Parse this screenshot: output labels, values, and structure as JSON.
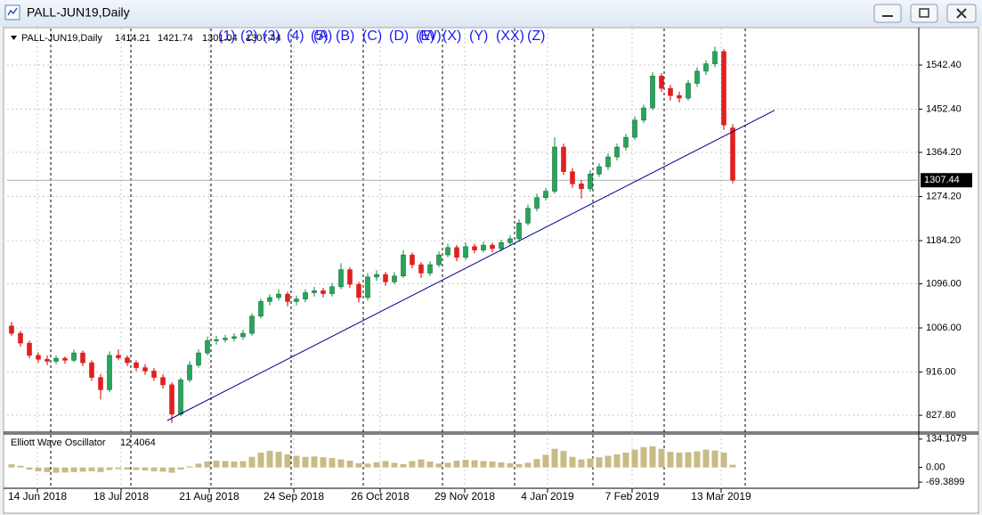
{
  "window": {
    "title": "PALL-JUN19,Daily"
  },
  "wave_labels": [
    "(1)",
    "(2)",
    "(3)",
    "(4)",
    "(5)",
    "(A)",
    "(B)",
    "(C)",
    "(D)",
    "(E)",
    "(W)",
    "(X)",
    "(Y)",
    "(XX)",
    "(Z)"
  ],
  "chart_data": [
    {
      "type": "candlestick",
      "up_color": "#26a65b",
      "down_color": "#e0201e",
      "xlim": [
        -0.5,
        101.9
      ],
      "xticks": [
        {
          "value": 2.9,
          "label": "14 Jun 2018"
        },
        {
          "value": 12.3,
          "label": "18 Jul 2018"
        },
        {
          "value": 22.2,
          "label": "21 Aug 2018"
        },
        {
          "value": 31.7,
          "label": "24 Sep 2018"
        },
        {
          "value": 41.4,
          "label": "26 Oct 2018"
        },
        {
          "value": 50.9,
          "label": "29 Nov 2018"
        },
        {
          "value": 60.2,
          "label": "4 Jan 2019"
        },
        {
          "value": 69.7,
          "label": "7 Feb 2019"
        },
        {
          "value": 79.7,
          "label": "13 Mar 2019"
        }
      ],
      "ylim": [
        797,
        1617
      ],
      "yticks": [
        {
          "value": 1542.4,
          "label": "1542.40"
        },
        {
          "value": 1452.4,
          "label": "1452.40"
        },
        {
          "value": 1364.2,
          "label": "1364.20"
        },
        {
          "value": 1274.2,
          "label": "1274.20"
        },
        {
          "value": 1184.2,
          "label": "1184.20"
        },
        {
          "value": 1096,
          "label": "1096.00"
        },
        {
          "value": 1006,
          "label": "1006.00"
        },
        {
          "value": 916,
          "label": "916.00"
        },
        {
          "value": 827.8,
          "label": "827.80"
        }
      ],
      "grid": true,
      "ohlc": [
        [
          1010,
          1018,
          990,
          995
        ],
        [
          995,
          1000,
          968,
          975
        ],
        [
          975,
          980,
          944,
          950
        ],
        [
          950,
          956,
          935,
          942
        ],
        [
          942,
          950,
          930,
          938
        ],
        [
          938,
          950,
          932,
          944
        ],
        [
          944,
          948,
          933,
          940
        ],
        [
          940,
          962,
          936,
          955
        ],
        [
          955,
          960,
          928,
          935
        ],
        [
          935,
          940,
          898,
          905
        ],
        [
          905,
          912,
          860,
          880
        ],
        [
          880,
          958,
          875,
          950
        ],
        [
          950,
          962,
          940,
          945
        ],
        [
          945,
          950,
          928,
          935
        ],
        [
          935,
          940,
          918,
          925
        ],
        [
          925,
          932,
          910,
          918
        ],
        [
          918,
          924,
          898,
          905
        ],
        [
          905,
          912,
          882,
          890
        ],
        [
          890,
          895,
          812,
          830
        ],
        [
          830,
          905,
          826,
          900
        ],
        [
          900,
          938,
          895,
          930
        ],
        [
          930,
          962,
          925,
          955
        ],
        [
          955,
          988,
          950,
          980
        ],
        [
          980,
          990,
          972,
          982
        ],
        [
          982,
          992,
          976,
          985
        ],
        [
          985,
          995,
          978,
          988
        ],
        [
          988,
          1002,
          982,
          995
        ],
        [
          995,
          1036,
          990,
          1030
        ],
        [
          1030,
          1066,
          1025,
          1060
        ],
        [
          1060,
          1075,
          1052,
          1068
        ],
        [
          1068,
          1085,
          1062,
          1075
        ],
        [
          1075,
          1080,
          1050,
          1060
        ],
        [
          1060,
          1072,
          1052,
          1065
        ],
        [
          1065,
          1085,
          1058,
          1078
        ],
        [
          1078,
          1090,
          1070,
          1082
        ],
        [
          1082,
          1088,
          1068,
          1076
        ],
        [
          1076,
          1098,
          1070,
          1090
        ],
        [
          1090,
          1138,
          1085,
          1125
        ],
        [
          1125,
          1130,
          1088,
          1095
        ],
        [
          1095,
          1100,
          1058,
          1068
        ],
        [
          1068,
          1118,
          1062,
          1110
        ],
        [
          1110,
          1124,
          1102,
          1115
        ],
        [
          1115,
          1120,
          1092,
          1100
        ],
        [
          1100,
          1120,
          1095,
          1112
        ],
        [
          1112,
          1165,
          1108,
          1155
        ],
        [
          1155,
          1160,
          1128,
          1135
        ],
        [
          1135,
          1140,
          1108,
          1118
        ],
        [
          1118,
          1142,
          1112,
          1135
        ],
        [
          1135,
          1162,
          1130,
          1155
        ],
        [
          1155,
          1178,
          1150,
          1170
        ],
        [
          1170,
          1175,
          1142,
          1150
        ],
        [
          1150,
          1180,
          1145,
          1172
        ],
        [
          1172,
          1178,
          1158,
          1165
        ],
        [
          1165,
          1182,
          1160,
          1175
        ],
        [
          1175,
          1180,
          1160,
          1168
        ],
        [
          1168,
          1186,
          1162,
          1180
        ],
        [
          1180,
          1195,
          1175,
          1188
        ],
        [
          1188,
          1228,
          1182,
          1220
        ],
        [
          1220,
          1258,
          1215,
          1250
        ],
        [
          1250,
          1280,
          1244,
          1272
        ],
        [
          1272,
          1292,
          1266,
          1285
        ],
        [
          1285,
          1395,
          1280,
          1375
        ],
        [
          1375,
          1382,
          1318,
          1325
        ],
        [
          1325,
          1332,
          1292,
          1300
        ],
        [
          1300,
          1308,
          1270,
          1290
        ],
        [
          1290,
          1328,
          1284,
          1320
        ],
        [
          1320,
          1342,
          1314,
          1335
        ],
        [
          1335,
          1362,
          1328,
          1355
        ],
        [
          1355,
          1382,
          1348,
          1375
        ],
        [
          1375,
          1402,
          1368,
          1395
        ],
        [
          1395,
          1438,
          1390,
          1430
        ],
        [
          1430,
          1462,
          1424,
          1455
        ],
        [
          1455,
          1528,
          1450,
          1520
        ],
        [
          1520,
          1526,
          1488,
          1495
        ],
        [
          1495,
          1502,
          1470,
          1480
        ],
        [
          1480,
          1488,
          1466,
          1475
        ],
        [
          1475,
          1512,
          1470,
          1505
        ],
        [
          1505,
          1538,
          1498,
          1530
        ],
        [
          1530,
          1552,
          1522,
          1545
        ],
        [
          1545,
          1580,
          1538,
          1570
        ],
        [
          1570,
          1575,
          1410,
          1420
        ],
        [
          1414.21,
          1421.74,
          1301.04,
          1307.44
        ]
      ],
      "trendline": {
        "color": "#00008b",
        "x": [
          17.5,
          85.7
        ],
        "y": [
          817,
          1450
        ]
      }
    },
    {
      "type": "histogram-oscillator",
      "name": "Elliott Wave Oscillator",
      "color": "#c8bb84",
      "ylim": [
        -90,
        150
      ],
      "yticks": [
        {
          "value": 134.1079,
          "label": "134.1079"
        },
        {
          "value": 0,
          "label": "0.00"
        },
        {
          "value": -69.3899,
          "label": "-69.3899"
        }
      ],
      "values": [
        15,
        8,
        -10,
        -18,
        -22,
        -25,
        -24,
        -22,
        -20,
        -18,
        -22,
        -12,
        -8,
        -10,
        -12,
        -14,
        -18,
        -20,
        -25,
        -10,
        5,
        18,
        28,
        32,
        30,
        28,
        30,
        50,
        70,
        78,
        74,
        62,
        55,
        50,
        52,
        48,
        44,
        38,
        32,
        20,
        18,
        24,
        30,
        22,
        16,
        30,
        38,
        28,
        18,
        22,
        32,
        36,
        34,
        30,
        28,
        24,
        20,
        16,
        22,
        40,
        60,
        88,
        78,
        50,
        38,
        42,
        48,
        55,
        62,
        70,
        84,
        96,
        100,
        88,
        74,
        70,
        72,
        76,
        84,
        80,
        70,
        12.4064
      ]
    }
  ]
}
